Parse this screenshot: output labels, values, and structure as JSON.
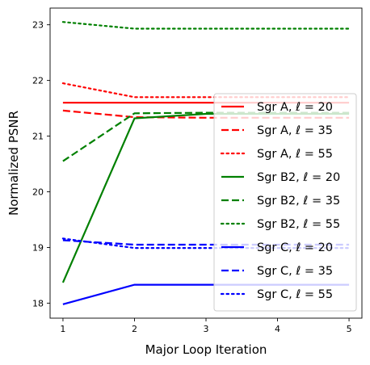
{
  "chart_data": {
    "type": "line",
    "title": "",
    "xlabel": "Major Loop Iteration",
    "ylabel": "Normalized PSNR",
    "x": [
      1,
      2,
      3,
      4,
      5
    ],
    "xticks": [
      "1",
      "2",
      "3",
      "4",
      "5"
    ],
    "yticks": [
      "18",
      "19",
      "20",
      "21",
      "22",
      "23"
    ],
    "xlim": [
      0.82,
      5.18
    ],
    "ylim": [
      17.73,
      23.3
    ],
    "grid": false,
    "legend_position": "center-right",
    "series": [
      {
        "name": "Sgr A, ℓ = 20",
        "color": "#ff0000",
        "style": "solid",
        "values": [
          21.6,
          21.6,
          21.6,
          21.6,
          21.6
        ]
      },
      {
        "name": "Sgr A, ℓ = 35",
        "color": "#ff0000",
        "style": "dashed",
        "values": [
          21.46,
          21.34,
          21.33,
          21.33,
          21.33
        ]
      },
      {
        "name": "Sgr A, ℓ = 55",
        "color": "#ff0000",
        "style": "dotted",
        "values": [
          21.95,
          21.7,
          21.7,
          21.7,
          21.7
        ]
      },
      {
        "name": "Sgr B2, ℓ = 20",
        "color": "#008000",
        "style": "solid",
        "values": [
          18.37,
          21.32,
          21.4,
          21.4,
          21.4
        ]
      },
      {
        "name": "Sgr B2, ℓ = 35",
        "color": "#008000",
        "style": "dashed",
        "values": [
          20.55,
          21.41,
          21.42,
          21.42,
          21.42
        ]
      },
      {
        "name": "Sgr B2, ℓ = 55",
        "color": "#008000",
        "style": "dotted",
        "values": [
          23.05,
          22.93,
          22.93,
          22.93,
          22.93
        ]
      },
      {
        "name": "Sgr C, ℓ = 20",
        "color": "#0000ff",
        "style": "solid",
        "values": [
          17.98,
          18.33,
          18.33,
          18.33,
          18.33
        ]
      },
      {
        "name": "Sgr C, ℓ = 35",
        "color": "#0000ff",
        "style": "dashed",
        "values": [
          19.13,
          19.05,
          19.05,
          19.05,
          19.05
        ]
      },
      {
        "name": "Sgr C, ℓ = 55",
        "color": "#0000ff",
        "style": "dotted",
        "values": [
          19.16,
          18.99,
          18.99,
          18.99,
          18.99
        ]
      }
    ]
  }
}
